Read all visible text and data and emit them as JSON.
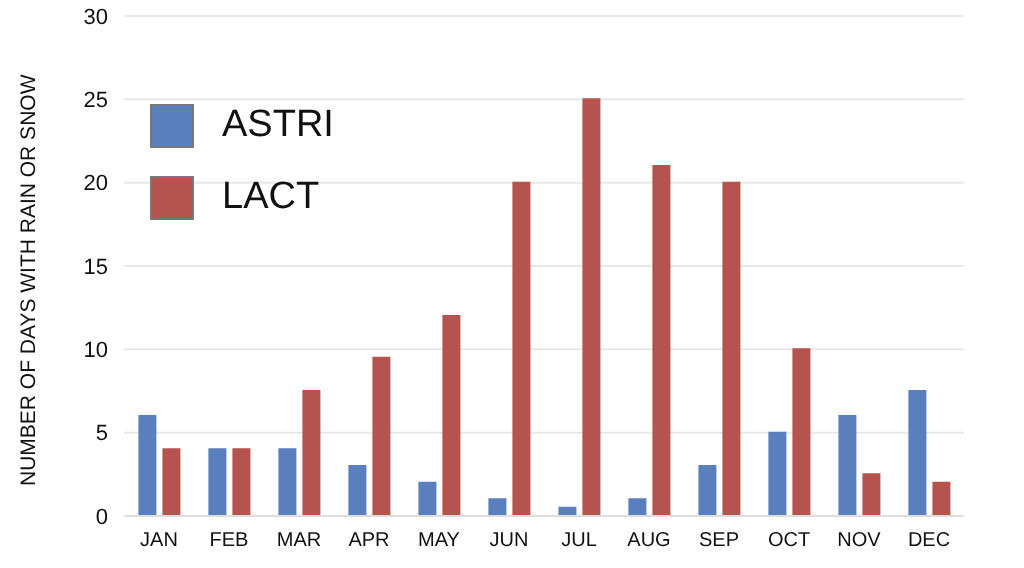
{
  "chart_data": {
    "type": "bar",
    "ylabel": "NUMBER OF DAYS WITH RAIN OR SNOW",
    "categories": [
      "JAN",
      "FEB",
      "MAR",
      "APR",
      "MAY",
      "JUN",
      "JUL",
      "AUG",
      "SEP",
      "OCT",
      "NOV",
      "DEC"
    ],
    "series": [
      {
        "name": "ASTRI",
        "color": "#5a7fbd",
        "values": [
          6,
          4,
          4,
          3,
          2,
          1,
          0.5,
          1,
          3,
          5,
          6,
          7.5
        ]
      },
      {
        "name": "LACT",
        "color": "#b5534f",
        "values": [
          4,
          4,
          7.5,
          9.5,
          12,
          20,
          25,
          21,
          20,
          10,
          2.5,
          2
        ]
      }
    ],
    "ylim": [
      0,
      30
    ],
    "yticks": [
      0,
      5,
      10,
      15,
      20,
      25,
      30
    ],
    "grid": "y",
    "legend": "top left"
  }
}
